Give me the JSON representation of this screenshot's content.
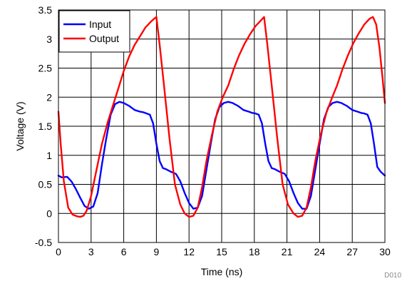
{
  "chart_data": {
    "type": "line",
    "xlabel": "Time (ns)",
    "ylabel": "Voltage (V)",
    "footnote": "D010",
    "xlim": [
      0,
      30
    ],
    "ylim": [
      -0.5,
      3.5
    ],
    "xticks": [
      0,
      3,
      6,
      9,
      12,
      15,
      18,
      21,
      24,
      27,
      30
    ],
    "yticks": [
      -0.5,
      0,
      0.5,
      1,
      1.5,
      2,
      2.5,
      3,
      3.5
    ],
    "xtick_labels": [
      "0",
      "3",
      "6",
      "9",
      "12",
      "15",
      "18",
      "21",
      "24",
      "27",
      "30"
    ],
    "ytick_labels": [
      "-0.5",
      "0",
      "0.5",
      "1",
      "1.5",
      "2",
      "2.5",
      "3",
      "3.5"
    ],
    "grid": true,
    "legend_position": "top-left",
    "series": [
      {
        "name": "Input",
        "color": "#0000ff",
        "x": [
          0,
          0.3,
          0.8,
          1.2,
          1.6,
          2.0,
          2.4,
          2.8,
          3.2,
          3.6,
          4.0,
          4.4,
          4.8,
          5.2,
          5.6,
          6.0,
          6.5,
          7.0,
          7.5,
          7.8,
          8.1,
          8.4,
          8.7,
          9.0,
          9.3,
          9.6,
          9.9,
          10.3,
          10.8,
          11.2,
          11.6,
          12.0,
          12.4,
          12.8,
          13.2,
          13.6,
          14.0,
          14.4,
          14.8,
          15.2,
          15.6,
          16.0,
          16.5,
          17.0,
          17.5,
          17.8,
          18.1,
          18.4,
          18.7,
          19.0,
          19.3,
          19.6,
          19.9,
          20.3,
          20.8,
          21.2,
          21.6,
          22.0,
          22.4,
          22.8,
          23.2,
          23.6,
          24.0,
          24.4,
          24.8,
          25.2,
          25.6,
          26.0,
          26.5,
          27.0,
          27.5,
          27.8,
          28.1,
          28.4,
          28.7,
          29.0,
          29.3,
          29.6,
          30.0
        ],
        "values": [
          0.65,
          0.62,
          0.63,
          0.55,
          0.42,
          0.27,
          0.13,
          0.08,
          0.12,
          0.35,
          0.85,
          1.3,
          1.7,
          1.88,
          1.92,
          1.9,
          1.85,
          1.78,
          1.75,
          1.74,
          1.72,
          1.7,
          1.55,
          1.2,
          0.9,
          0.78,
          0.76,
          0.72,
          0.68,
          0.55,
          0.35,
          0.18,
          0.08,
          0.1,
          0.3,
          0.75,
          1.2,
          1.62,
          1.83,
          1.9,
          1.92,
          1.9,
          1.85,
          1.78,
          1.75,
          1.73,
          1.72,
          1.7,
          1.55,
          1.2,
          0.9,
          0.78,
          0.76,
          0.72,
          0.68,
          0.55,
          0.35,
          0.18,
          0.08,
          0.08,
          0.3,
          0.75,
          1.2,
          1.62,
          1.83,
          1.9,
          1.92,
          1.9,
          1.85,
          1.78,
          1.75,
          1.73,
          1.72,
          1.7,
          1.55,
          1.2,
          0.8,
          0.72,
          0.65
        ]
      },
      {
        "name": "Output",
        "color": "#ff0000",
        "x": [
          0,
          0.2,
          0.5,
          0.9,
          1.3,
          1.7,
          2.0,
          2.3,
          2.6,
          3.0,
          3.5,
          4.0,
          4.5,
          5.0,
          5.5,
          6.0,
          6.5,
          7.0,
          7.5,
          8.0,
          8.5,
          8.8,
          9.0,
          9.3,
          9.7,
          10.2,
          10.7,
          11.2,
          11.6,
          12.0,
          12.4,
          12.8,
          13.2,
          13.6,
          14.1,
          14.6,
          15.1,
          15.6,
          16.1,
          16.6,
          17.1,
          17.6,
          18.1,
          18.6,
          18.9,
          19.2,
          19.6,
          20.1,
          20.6,
          21.1,
          21.6,
          22.0,
          22.4,
          22.8,
          23.2,
          23.6,
          24.1,
          24.6,
          25.1,
          25.6,
          26.1,
          26.6,
          27.1,
          27.6,
          28.1,
          28.6,
          28.9,
          29.2,
          29.5,
          29.8,
          30.0
        ],
        "values": [
          1.75,
          1.2,
          0.55,
          0.1,
          -0.02,
          -0.05,
          -0.06,
          -0.04,
          0.05,
          0.3,
          0.75,
          1.2,
          1.55,
          1.85,
          2.15,
          2.45,
          2.7,
          2.9,
          3.05,
          3.2,
          3.3,
          3.35,
          3.38,
          2.9,
          2.2,
          1.3,
          0.5,
          0.15,
          0.0,
          -0.06,
          -0.04,
          0.1,
          0.45,
          0.9,
          1.35,
          1.75,
          2.0,
          2.2,
          2.48,
          2.72,
          2.92,
          3.08,
          3.22,
          3.32,
          3.38,
          2.9,
          2.2,
          1.3,
          0.5,
          0.15,
          0.0,
          -0.06,
          -0.04,
          0.1,
          0.45,
          0.9,
          1.35,
          1.72,
          1.97,
          2.2,
          2.48,
          2.72,
          2.93,
          3.1,
          3.25,
          3.35,
          3.38,
          3.25,
          2.85,
          2.3,
          1.9
        ]
      }
    ]
  }
}
